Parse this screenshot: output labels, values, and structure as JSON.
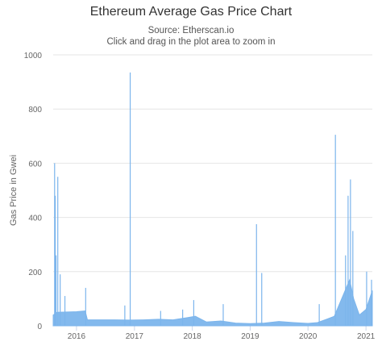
{
  "chart_data": {
    "type": "area",
    "title": "Ethereum Average Gas Price Chart",
    "subtitle": "Source: Etherscan.io",
    "subtitle2": "Click and drag in the plot area to zoom in",
    "ylabel": "Gas Price in Gwei",
    "xlabel": "",
    "ylim": [
      0,
      1000
    ],
    "yticks": [
      0,
      200,
      400,
      600,
      800,
      1000
    ],
    "xlim": [
      "2015-08-07",
      "2021-02-10"
    ],
    "xticks": [
      "2016",
      "2017",
      "2018",
      "2019",
      "2020",
      "2021"
    ],
    "grid": true,
    "legend": "none",
    "series": [
      {
        "color": "#7cb5ec",
        "baseline": [
          [
            "2015-08-07",
            40
          ],
          [
            "2015-09-01",
            50
          ],
          [
            "2016-01-01",
            52
          ],
          [
            "2016-02-25",
            55
          ],
          [
            "2016-03-10",
            22
          ],
          [
            "2016-06-01",
            22
          ],
          [
            "2016-09-01",
            22
          ],
          [
            "2016-12-01",
            21
          ],
          [
            "2017-03-01",
            22
          ],
          [
            "2017-06-01",
            24
          ],
          [
            "2017-09-01",
            22
          ],
          [
            "2017-12-01",
            30
          ],
          [
            "2018-01-20",
            35
          ],
          [
            "2018-04-01",
            14
          ],
          [
            "2018-07-01",
            18
          ],
          [
            "2018-10-01",
            10
          ],
          [
            "2019-01-01",
            8
          ],
          [
            "2019-04-01",
            10
          ],
          [
            "2019-07-01",
            16
          ],
          [
            "2019-10-01",
            12
          ],
          [
            "2020-01-01",
            9
          ],
          [
            "2020-03-01",
            12
          ],
          [
            "2020-05-01",
            25
          ],
          [
            "2020-06-15",
            35
          ],
          [
            "2020-08-15",
            120
          ],
          [
            "2020-09-20",
            170
          ],
          [
            "2020-10-15",
            100
          ],
          [
            "2020-11-20",
            40
          ],
          [
            "2021-01-01",
            60
          ],
          [
            "2021-02-10",
            130
          ]
        ],
        "spikes": [
          [
            "2015-08-16",
            600
          ],
          [
            "2015-08-20",
            480
          ],
          [
            "2015-08-25",
            260
          ],
          [
            "2015-09-05",
            550
          ],
          [
            "2015-09-20",
            190
          ],
          [
            "2015-10-20",
            110
          ],
          [
            "2016-02-28",
            140
          ],
          [
            "2016-11-01",
            75
          ],
          [
            "2016-12-05",
            935
          ],
          [
            "2017-06-15",
            55
          ],
          [
            "2017-11-01",
            60
          ],
          [
            "2018-01-10",
            95
          ],
          [
            "2018-07-15",
            80
          ],
          [
            "2019-02-10",
            375
          ],
          [
            "2019-03-15",
            195
          ],
          [
            "2020-03-12",
            80
          ],
          [
            "2020-06-22",
            705
          ],
          [
            "2020-08-25",
            260
          ],
          [
            "2020-09-10",
            480
          ],
          [
            "2020-09-25",
            540
          ],
          [
            "2020-10-10",
            350
          ],
          [
            "2021-01-05",
            200
          ],
          [
            "2021-02-05",
            170
          ]
        ]
      }
    ]
  }
}
